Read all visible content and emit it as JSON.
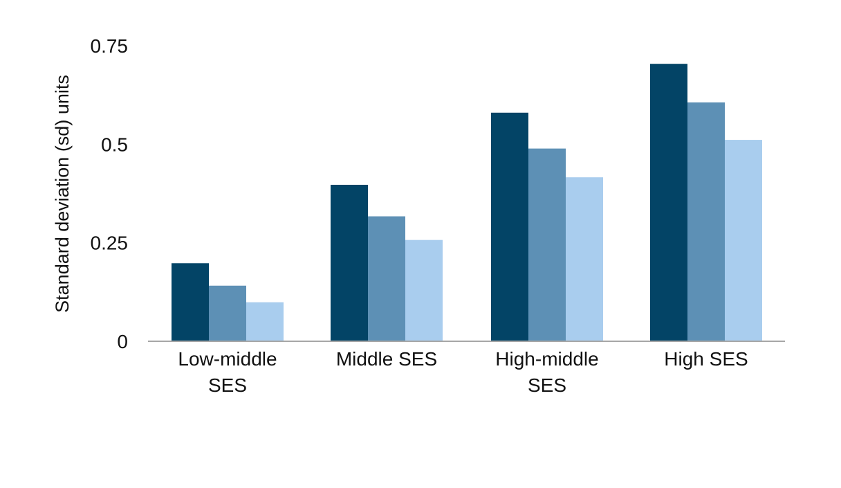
{
  "chart_data": {
    "type": "bar",
    "title": "",
    "xlabel": "",
    "ylabel": "Standard deviation (sd) units",
    "ylim": [
      0,
      0.75
    ],
    "yticks": [
      {
        "value": 0,
        "label": "0"
      },
      {
        "value": 0.25,
        "label": "0.25"
      },
      {
        "value": 0.5,
        "label": "0.5"
      },
      {
        "value": 0.75,
        "label": "0.75"
      }
    ],
    "categories": [
      [
        "Low-middle",
        "SES"
      ],
      [
        "Middle SES"
      ],
      [
        "High-middle",
        "SES"
      ],
      [
        "High SES"
      ]
    ],
    "series": [
      {
        "color": "#034466",
        "values": [
          0.198,
          0.397,
          0.58,
          0.704
        ]
      },
      {
        "color": "#5d90b5",
        "values": [
          0.141,
          0.317,
          0.489,
          0.606
        ]
      },
      {
        "color": "#a9cdee",
        "values": [
          0.099,
          0.257,
          0.416,
          0.511
        ]
      }
    ],
    "grid": false,
    "legend": "none"
  }
}
